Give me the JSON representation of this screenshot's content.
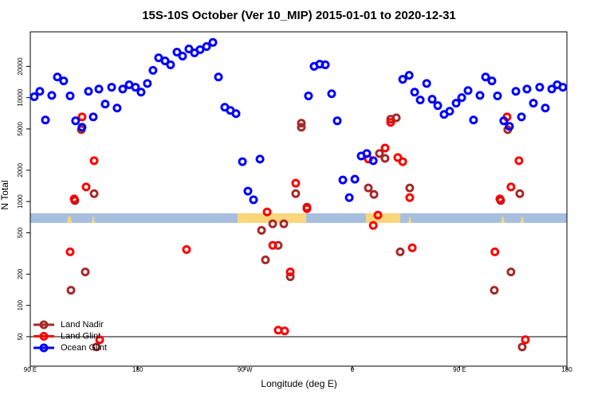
{
  "chart_data": {
    "type": "scatter",
    "title": "15S-10S October (Ver 10_MIP)   2015-01-01 to 2020-12-31",
    "x_label": "Longitude (deg E)",
    "y_label": "N Total",
    "xlim": [
      90,
      540
    ],
    "xticks": [
      {
        "value": 90,
        "label": "90 E"
      },
      180,
      {
        "value": 270,
        "label": "90 W"
      },
      {
        "value": 360,
        "label": "0"
      },
      {
        "value": 450,
        "label": "90 E"
      },
      {
        "value": 540,
        "label": "180"
      }
    ],
    "ylim": [
      26,
      43000
    ],
    "ylog": true,
    "yticks": [
      50,
      100,
      200,
      500,
      1000,
      2000,
      5000,
      10000,
      20000
    ],
    "hline": 50,
    "legend": "bottom-left",
    "series": [
      {
        "name": "Land Nadir",
        "color": "#a52a2a",
        "x": [
          124.1,
          127.4,
          132.8,
          136.1,
          143.5,
          145.5,
          283.9,
          287.2,
          293.3,
          297.9,
          302.6,
          308,
          312.6,
          317.3,
          317.3,
          322,
          373.5,
          378.2,
          382.8,
          387.5,
          392.2,
          396.9,
          400.2,
          408.2,
          479.1,
          484.5,
          490.4,
          493.1,
          500.5,
          502.5
        ],
        "values": [
          140,
          1020,
          4920,
          210,
          1190,
          39.8,
          528,
          274,
          610,
          378,
          610,
          189,
          1190,
          5680,
          5190,
          883,
          1350,
          1170,
          2900,
          2600,
          6200,
          6400,
          328,
          1350,
          140,
          1020,
          4920,
          210,
          1190,
          39.8
        ]
      },
      {
        "name": "Land Glint",
        "color": "#ff0000",
        "x": [
          123.4,
          126.8,
          133.4,
          136.8,
          143.5,
          148.2,
          221,
          288.6,
          293.3,
          297.9,
          303.3,
          308,
          312.6,
          322,
          373.5,
          377.6,
          381.5,
          387.5,
          392.2,
          398.2,
          402.3,
          408.2,
          410.3,
          479.6,
          483.8,
          489.8,
          493.1,
          499.8,
          505.2
        ],
        "values": [
          328,
          1060,
          6530,
          1380,
          2470,
          46.7,
          345,
          794,
          378,
          57.8,
          56.8,
          210,
          1500,
          853,
          2560,
          588,
          740,
          3270,
          5780,
          2650,
          2420,
          1090,
          358,
          328,
          1060,
          6530,
          1380,
          2470,
          46.7
        ]
      },
      {
        "name": "Ocean Glint",
        "color": "#0000ff",
        "x": [
          93.3,
          98,
          102.7,
          108,
          112.7,
          118,
          123.4,
          128,
          133.4,
          138.8,
          142.8,
          147.5,
          152.8,
          158.2,
          162.8,
          167.5,
          172.9,
          178.2,
          182.9,
          188.2,
          192.9,
          197.6,
          203,
          207.6,
          213,
          217.7,
          223,
          227.7,
          232.4,
          237.8,
          243.1,
          247.8,
          253.1,
          257.8,
          262.5,
          267.9,
          272.5,
          277.2,
          282.6,
          323.3,
          328,
          332.7,
          337.4,
          342.7,
          347.4,
          352.1,
          357.5,
          362.2,
          367.5,
          372.2,
          377.6,
          402.3,
          407.7,
          412.3,
          417,
          422.4,
          427,
          431.7,
          437,
          441.7,
          447.1,
          451.8,
          457.1,
          461.7,
          467.1,
          471.8,
          477.1,
          481.8,
          487.1,
          491.8,
          497.2,
          501.9,
          506.5,
          511.9,
          517.2,
          521.9,
          527.3,
          531.9,
          536.6
        ],
        "values": [
          10200,
          11500,
          6090,
          10500,
          15800,
          14500,
          10400,
          5980,
          5190,
          11500,
          6530,
          12100,
          8670,
          12600,
          7940,
          12100,
          13300,
          12600,
          11300,
          13700,
          18300,
          24200,
          22600,
          20700,
          27400,
          25100,
          29400,
          27000,
          29000,
          31000,
          34000,
          15800,
          8080,
          7530,
          7020,
          2420,
          1260,
          1040,
          2560,
          10400,
          20000,
          21000,
          20700,
          10900,
          5980,
          1610,
          1090,
          1640,
          2740,
          2900,
          2470,
          15000,
          16400,
          11300,
          9490,
          13700,
          9650,
          8380,
          6890,
          7400,
          8840,
          10000,
          11700,
          6090,
          10500,
          15800,
          14500,
          10400,
          5980,
          5290,
          11500,
          6530,
          12100,
          8840,
          12600,
          7940,
          12100,
          13300,
          12600
        ]
      }
    ]
  }
}
